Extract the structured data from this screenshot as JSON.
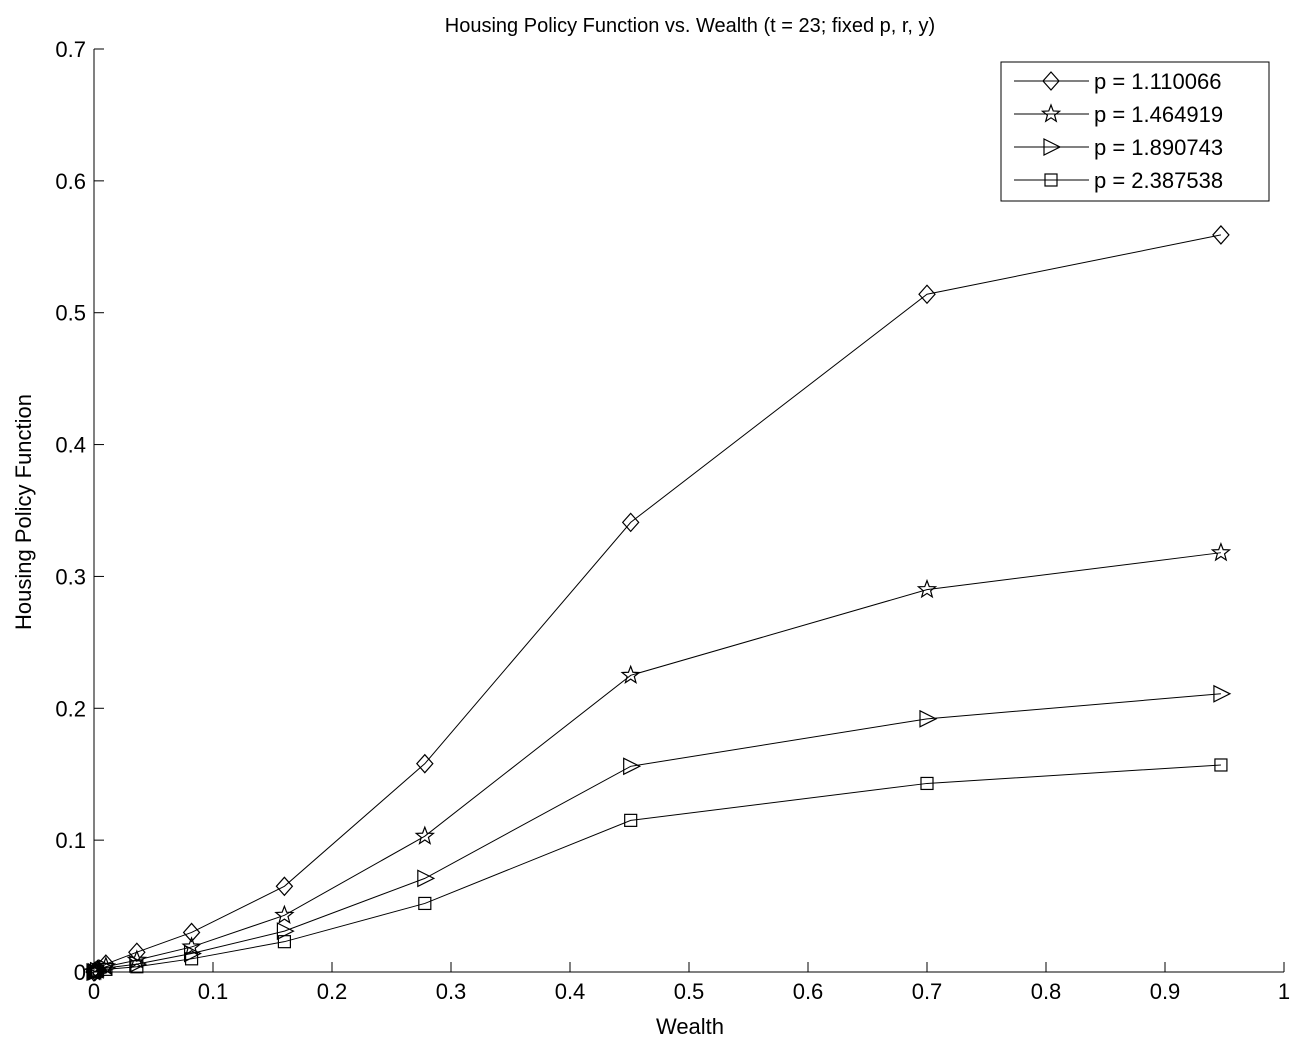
{
  "chart_data": {
    "type": "line",
    "title": "Housing Policy Function vs. Wealth (t = 23; fixed p, r, y)",
    "xlabel": "Wealth",
    "ylabel": "Housing Policy Function",
    "xlim": [
      0,
      1
    ],
    "ylim": [
      0,
      0.7
    ],
    "xticks": [
      "0",
      "0.1",
      "0.2",
      "0.3",
      "0.4",
      "0.5",
      "0.6",
      "0.7",
      "0.8",
      "0.9",
      "1"
    ],
    "yticks": [
      "0",
      "0.1",
      "0.2",
      "0.3",
      "0.4",
      "0.5",
      "0.6",
      "0.7"
    ],
    "grid": false,
    "legend_position": "top-right",
    "x": [
      0.0,
      0.001,
      0.003,
      0.01,
      0.036,
      0.082,
      0.16,
      0.278,
      0.451,
      0.7,
      0.947
    ],
    "series": [
      {
        "name": "p = 1.110066",
        "marker": "diamond",
        "values": [
          0.0,
          0.0005,
          0.002,
          0.006,
          0.015,
          0.03,
          0.065,
          0.158,
          0.341,
          0.514,
          0.559
        ]
      },
      {
        "name": "p = 1.464919",
        "marker": "star",
        "values": [
          0.0,
          0.0003,
          0.0013,
          0.004,
          0.009,
          0.019,
          0.043,
          0.103,
          0.225,
          0.29,
          0.318
        ]
      },
      {
        "name": "p = 1.890743",
        "marker": "triangle-right",
        "values": [
          0.0,
          0.0002,
          0.001,
          0.003,
          0.006,
          0.014,
          0.031,
          0.071,
          0.156,
          0.192,
          0.211
        ]
      },
      {
        "name": "p = 2.387538",
        "marker": "square",
        "values": [
          0.0,
          0.0001,
          0.0007,
          0.002,
          0.004,
          0.01,
          0.023,
          0.052,
          0.115,
          0.143,
          0.157
        ]
      }
    ]
  }
}
